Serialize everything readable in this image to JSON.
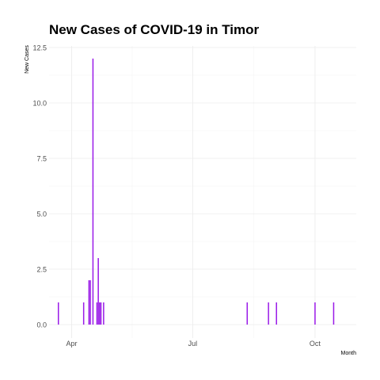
{
  "chart_data": {
    "type": "bar",
    "title": "New Cases of COVID-19 in Timor",
    "xlabel": "Month",
    "ylabel": "New Cases",
    "x_type": "date",
    "xlim": [
      "2020-03-15",
      "2020-11-01"
    ],
    "ylim": [
      -0.6,
      12.5
    ],
    "y_ticks": [
      0.0,
      2.5,
      5.0,
      7.5,
      10.0,
      12.5
    ],
    "y_tick_labels": [
      "0.0",
      "2.5",
      "5.0",
      "7.5",
      "10.0",
      "12.5"
    ],
    "x_ticks": [
      "2020-04-01",
      "2020-07-01",
      "2020-10-01"
    ],
    "x_tick_labels": [
      "Apr",
      "Jul",
      "Oct"
    ],
    "grid": true,
    "bar_color": "#9a1be8",
    "series": [
      {
        "dates": [
          "2020-03-22",
          "2020-04-10",
          "2020-04-14",
          "2020-04-15",
          "2020-04-17",
          "2020-04-20",
          "2020-04-21",
          "2020-04-22",
          "2020-04-23",
          "2020-04-25",
          "2020-08-11",
          "2020-08-27",
          "2020-09-02",
          "2020-10-01",
          "2020-10-15"
        ],
        "values": [
          1,
          1,
          2,
          2,
          12,
          1,
          3,
          1,
          1,
          1,
          1,
          1,
          1,
          1,
          1
        ]
      }
    ]
  }
}
